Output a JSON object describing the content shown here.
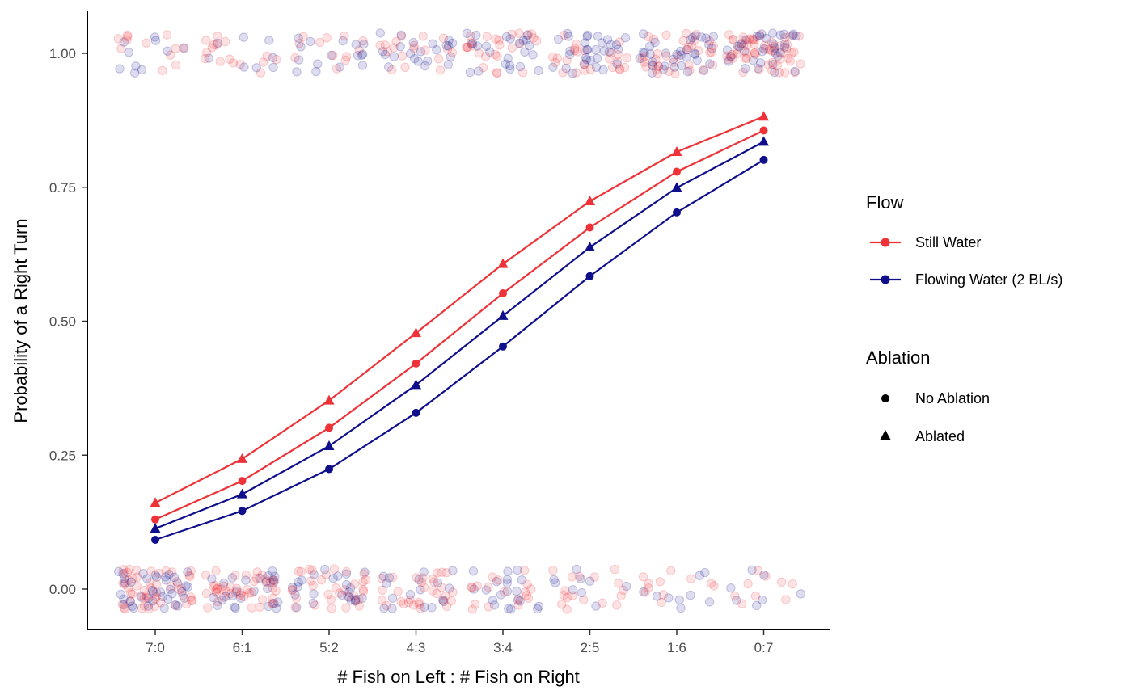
{
  "chart_data": {
    "type": "line",
    "xlabel": "# Fish on Left : # Fish on Right",
    "ylabel": "Probability of a Right Turn",
    "categories": [
      "7:0",
      "6:1",
      "5:2",
      "4:3",
      "3:4",
      "2:5",
      "1:6",
      "0:7"
    ],
    "ylim": [
      -0.07,
      1.07
    ],
    "yticks": [
      0.0,
      0.25,
      0.5,
      0.75,
      1.0
    ],
    "ytick_labels": [
      "0.00",
      "0.25",
      "0.50",
      "0.75",
      "1.00"
    ],
    "grid": false,
    "legend_position": "right",
    "series": [
      {
        "flow": "Still Water",
        "ablation": "No Ablation",
        "color": "#EE3338",
        "marker": "circle",
        "values": [
          0.13,
          0.202,
          0.301,
          0.421,
          0.552,
          0.675,
          0.779,
          0.856
        ]
      },
      {
        "flow": "Still Water",
        "ablation": "Ablated",
        "color": "#EE3338",
        "marker": "triangle",
        "values": [
          0.161,
          0.243,
          0.352,
          0.478,
          0.607,
          0.724,
          0.816,
          0.882
        ]
      },
      {
        "flow": "Flowing Water (2 BL/s)",
        "ablation": "No Ablation",
        "color": "#0F0F8C",
        "marker": "circle",
        "values": [
          0.092,
          0.146,
          0.224,
          0.329,
          0.453,
          0.584,
          0.703,
          0.801
        ]
      },
      {
        "flow": "Flowing Water (2 BL/s)",
        "ablation": "Ablated",
        "color": "#0F0F8C",
        "marker": "triangle",
        "values": [
          0.113,
          0.177,
          0.267,
          0.381,
          0.51,
          0.638,
          0.749,
          0.835
        ]
      }
    ],
    "raw_observations": {
      "description_values": "Jittered binary outcomes (0 = left turn, 1 = right turn) plotted as translucent points",
      "outcomes": [
        0,
        1
      ],
      "colors": {
        "still": "#EE3338",
        "flowing": "#0F0F8C"
      },
      "approx_count_at_1": [
        22,
        24,
        28,
        40,
        50,
        56,
        70,
        90
      ],
      "approx_count_at_0": [
        90,
        70,
        56,
        48,
        38,
        26,
        20,
        16
      ]
    },
    "legend": {
      "flow": {
        "title": "Flow",
        "items": [
          "Still Water",
          "Flowing Water (2 BL/s)"
        ],
        "colors": [
          "#EE3338",
          "#0F0F8C"
        ]
      },
      "ablation": {
        "title": "Ablation",
        "items": [
          "No Ablation",
          "Ablated"
        ],
        "markers": [
          "circle",
          "triangle"
        ]
      }
    }
  }
}
